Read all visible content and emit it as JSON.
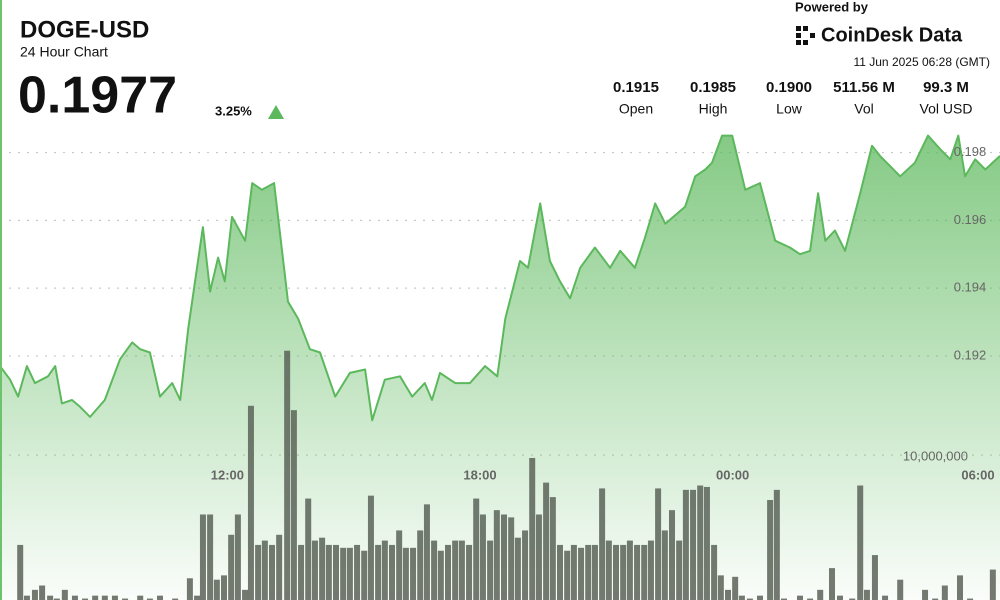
{
  "chart_data": {
    "type": "area",
    "title": "DOGE-USD",
    "subtitle": "24 Hour Chart",
    "price": "0.1977",
    "change": "3.25%",
    "powered_by": "Powered by",
    "brand": "CoinDesk Data",
    "timestamp": "11 Jun 2025 06:28 (GMT)",
    "stats": [
      {
        "value": "0.1915",
        "label": "Open"
      },
      {
        "value": "0.1985",
        "label": "High"
      },
      {
        "value": "0.1900",
        "label": "Low"
      },
      {
        "value": "511.56 M",
        "label": "Vol"
      },
      {
        "value": "99.3 M",
        "label": "Vol USD"
      }
    ],
    "xlim": [
      6.6,
      30.35
    ],
    "xticks": [
      {
        "value": 12,
        "label": "12:00"
      },
      {
        "value": 18,
        "label": "18:00"
      },
      {
        "value": 24,
        "label": "00:00"
      },
      {
        "value": 30,
        "label": "06:00"
      }
    ],
    "ylim": [
      0.1848,
      0.2025
    ],
    "yticks": [
      0.192,
      0.194,
      0.196,
      0.198
    ],
    "y2lim": [
      0,
      41400000
    ],
    "y2ticks": [
      {
        "value": 10000000,
        "label": "10,000,000"
      }
    ],
    "grid": true,
    "series": [
      {
        "type": "area",
        "color": "#5cb85c",
        "x": [
          6.6,
          6.84,
          7.03,
          7.24,
          7.43,
          7.74,
          7.91,
          8.07,
          8.31,
          8.5,
          8.74,
          9.09,
          9.45,
          9.74,
          9.93,
          10.16,
          10.4,
          10.69,
          10.88,
          11.07,
          11.42,
          11.59,
          11.78,
          11.94,
          12.11,
          12.42,
          12.59,
          12.82,
          13.11,
          13.44,
          13.68,
          13.96,
          14.2,
          14.56,
          14.91,
          15.27,
          15.44,
          15.74,
          16.1,
          16.39,
          16.69,
          16.86,
          17.05,
          17.41,
          17.76,
          18.12,
          18.41,
          18.6,
          18.95,
          19.14,
          19.43,
          19.66,
          19.9,
          20.14,
          20.38,
          20.73,
          21.09,
          21.33,
          21.68,
          21.92,
          22.16,
          22.4,
          22.87,
          23.11,
          23.35,
          23.51,
          23.75,
          23.99,
          24.3,
          24.65,
          25.01,
          25.36,
          25.6,
          25.84,
          26.03,
          26.2,
          26.43,
          26.67,
          27.03,
          27.31,
          27.5,
          27.98,
          28.33,
          28.64,
          28.93,
          29.17,
          29.36,
          29.52,
          29.76,
          30.0,
          30.35
        ],
        "values": [
          0.1917,
          0.1913,
          0.1908,
          0.1917,
          0.1912,
          0.1914,
          0.1917,
          0.1906,
          0.1907,
          0.1905,
          0.1902,
          0.1907,
          0.1919,
          0.1924,
          0.1922,
          0.1921,
          0.1908,
          0.1912,
          0.1907,
          0.1928,
          0.1958,
          0.1939,
          0.1949,
          0.1942,
          0.1961,
          0.1954,
          0.1971,
          0.1969,
          0.1971,
          0.1936,
          0.1931,
          0.1922,
          0.1921,
          0.1908,
          0.1915,
          0.1916,
          0.1901,
          0.1913,
          0.1914,
          0.1908,
          0.1912,
          0.1907,
          0.1915,
          0.1912,
          0.1912,
          0.1917,
          0.1914,
          0.1931,
          0.1948,
          0.1946,
          0.1965,
          0.1948,
          0.1942,
          0.1937,
          0.1946,
          0.1952,
          0.1946,
          0.1951,
          0.1946,
          0.1955,
          0.1965,
          0.1959,
          0.1964,
          0.1973,
          0.1975,
          0.1977,
          0.1985,
          0.1985,
          0.1969,
          0.1971,
          0.1954,
          0.1952,
          0.195,
          0.1951,
          0.1968,
          0.1954,
          0.1957,
          0.1951,
          0.1968,
          0.1982,
          0.1979,
          0.1973,
          0.1977,
          0.1985,
          0.1981,
          0.1978,
          0.1985,
          0.1973,
          0.1978,
          0.1975,
          0.1979
        ]
      },
      {
        "type": "bar",
        "axis": "y2",
        "color": "#5a6358",
        "x": [
          7.08,
          7.24,
          7.43,
          7.6,
          7.79,
          7.95,
          8.14,
          8.38,
          8.62,
          8.86,
          9.09,
          9.33,
          9.57,
          9.93,
          10.16,
          10.4,
          10.76,
          11.11,
          11.28,
          11.42,
          11.59,
          11.75,
          11.92,
          12.09,
          12.25,
          12.42,
          12.56,
          12.73,
          12.89,
          13.06,
          13.23,
          13.42,
          13.58,
          13.75,
          13.92,
          14.08,
          14.25,
          14.41,
          14.58,
          14.75,
          14.91,
          15.08,
          15.25,
          15.41,
          15.58,
          15.74,
          15.91,
          16.08,
          16.24,
          16.41,
          16.58,
          16.74,
          16.91,
          17.07,
          17.24,
          17.41,
          17.57,
          17.74,
          17.91,
          18.07,
          18.24,
          18.4,
          18.57,
          18.74,
          18.9,
          19.07,
          19.24,
          19.4,
          19.57,
          19.73,
          19.9,
          20.07,
          20.23,
          20.4,
          20.57,
          20.73,
          20.9,
          21.06,
          21.23,
          21.4,
          21.56,
          21.73,
          21.9,
          22.06,
          22.23,
          22.39,
          22.56,
          22.73,
          22.89,
          23.06,
          23.23,
          23.39,
          23.56,
          23.72,
          23.89,
          24.06,
          24.22,
          24.41,
          24.65,
          24.89,
          25.05,
          25.22,
          25.6,
          25.84,
          26.08,
          26.36,
          26.55,
          26.84,
          27.03,
          27.19,
          27.38,
          27.62,
          27.98,
          28.57,
          28.81,
          29.04,
          29.4,
          29.64,
          30.18
        ],
        "values": [
          3800000,
          300000,
          700000,
          1000000,
          300000,
          100000,
          700000,
          300000,
          100000,
          300000,
          300000,
          300000,
          100000,
          300000,
          100000,
          300000,
          100000,
          1500000,
          300000,
          5900000,
          5900000,
          1400000,
          1700000,
          4500000,
          5900000,
          700000,
          13400000,
          3800000,
          4100000,
          3800000,
          4500000,
          17200000,
          13100000,
          3800000,
          7000000,
          4100000,
          4300000,
          3800000,
          3800000,
          3600000,
          3600000,
          3800000,
          3400000,
          7200000,
          3800000,
          4100000,
          3800000,
          4800000,
          3600000,
          3600000,
          4800000,
          6600000,
          4100000,
          3400000,
          3800000,
          4100000,
          4100000,
          3800000,
          7000000,
          5900000,
          4100000,
          6200000,
          5900000,
          5700000,
          4300000,
          4800000,
          9800000,
          5900000,
          8100000,
          7100000,
          3800000,
          3400000,
          3800000,
          3600000,
          3800000,
          3800000,
          7700000,
          4100000,
          3800000,
          3800000,
          4100000,
          3800000,
          3800000,
          4100000,
          7700000,
          4800000,
          6200000,
          4100000,
          7600000,
          7600000,
          7900000,
          7800000,
          3800000,
          1700000,
          700000,
          1600000,
          300000,
          100000,
          300000,
          6900000,
          7600000,
          100000,
          300000,
          100000,
          700000,
          2200000,
          300000,
          100000,
          7900000,
          700000,
          3100000,
          300000,
          1400000,
          700000,
          100000,
          1000000,
          1700000,
          100000,
          2100000
        ]
      }
    ]
  }
}
